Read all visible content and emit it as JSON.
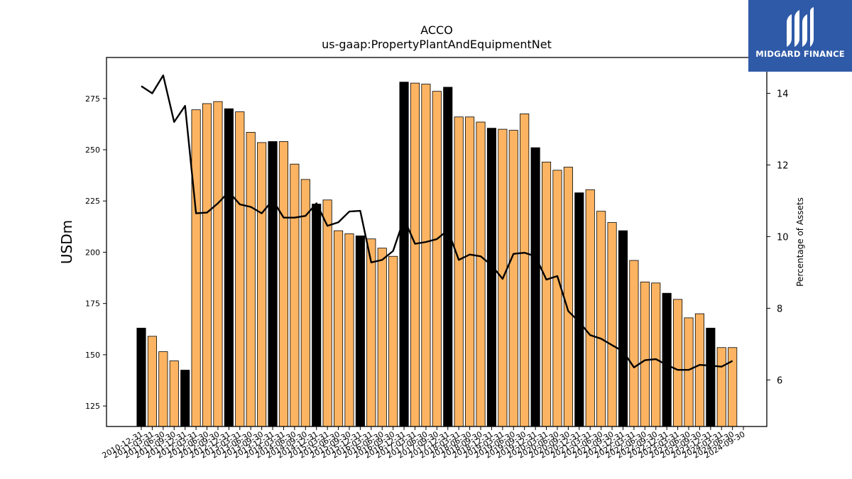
{
  "chart_data": {
    "type": "bar+line",
    "title": "ACCO",
    "subtitle": "us-gaap:PropertyPlantAndEquipmentNet",
    "ylabel": "USDm",
    "y2label": "Percentage of Assets",
    "ylim": [
      115,
      295
    ],
    "y2lim": [
      4.7,
      15.0
    ],
    "yticks": [
      125,
      150,
      175,
      200,
      225,
      250,
      275
    ],
    "y2ticks": [
      6,
      8,
      10,
      12,
      14
    ],
    "categories": [
      "2010-12-31",
      "2011-03-31",
      "2011-06-30",
      "2011-09-30",
      "2011-12-31",
      "2012-03-31",
      "2012-06-30",
      "2012-09-30",
      "2012-12-31",
      "2013-03-31",
      "2013-06-30",
      "2013-09-30",
      "2013-12-31",
      "2014-03-31",
      "2014-06-30",
      "2014-09-30",
      "2014-12-31",
      "2015-03-31",
      "2015-06-30",
      "2015-09-30",
      "2015-12-31",
      "2016-03-31",
      "2016-06-30",
      "2016-09-30",
      "2016-12-31",
      "2017-03-31",
      "2017-06-30",
      "2017-09-30",
      "2017-12-31",
      "2018-03-31",
      "2018-06-30",
      "2018-09-30",
      "2018-12-31",
      "2019-03-31",
      "2019-06-30",
      "2019-09-30",
      "2019-12-31",
      "2020-03-31",
      "2020-06-30",
      "2020-09-30",
      "2020-12-31",
      "2021-03-31",
      "2021-06-30",
      "2021-09-30",
      "2021-12-31",
      "2022-03-31",
      "2022-06-30",
      "2022-09-30",
      "2022-12-31",
      "2023-03-31",
      "2023-06-30",
      "2023-09-30",
      "2023-12-31",
      "2024-03-31",
      "2024-06-30",
      "2024-09-30"
    ],
    "series": [
      {
        "name": "",
        "type": "bar",
        "values": [
          163.0,
          159.0,
          151.5,
          147.0,
          142.5,
          269.5,
          272.5,
          273.5,
          270.0,
          268.5,
          258.5,
          253.5,
          254.0,
          254.0,
          243.0,
          235.5,
          223.5,
          225.5,
          210.5,
          209.0,
          208.0,
          206.5,
          202.0,
          198.0,
          283.0,
          282.5,
          282.0,
          278.5,
          280.5,
          266.0,
          266.0,
          263.5,
          260.5,
          260.0,
          259.5,
          267.5,
          251.0,
          244.0,
          240.0,
          241.5,
          229.0,
          230.5,
          220.0,
          214.5,
          210.5,
          196.0,
          185.5,
          185.0,
          180.0,
          177.0,
          168.0,
          170.0,
          163.0,
          153.5,
          153.5,
          null
        ]
      },
      {
        "name": "",
        "type": "line",
        "values": [
          14.2,
          14.0,
          14.5,
          13.2,
          13.65,
          10.65,
          10.67,
          10.93,
          11.25,
          10.9,
          10.83,
          10.65,
          11.02,
          10.53,
          10.53,
          10.58,
          10.93,
          10.3,
          10.4,
          10.7,
          10.72,
          9.28,
          9.35,
          9.6,
          10.5,
          9.8,
          9.85,
          9.93,
          10.18,
          9.35,
          9.5,
          9.45,
          9.2,
          8.82,
          9.52,
          9.55,
          9.45,
          8.8,
          8.9,
          7.92,
          7.62,
          7.25,
          7.15,
          6.97,
          6.8,
          6.35,
          6.55,
          6.58,
          6.42,
          6.28,
          6.28,
          6.42,
          6.4,
          6.37,
          6.53,
          null
        ]
      }
    ],
    "bar_highlight_every": 4,
    "colors": {
      "bar": "#fdb462",
      "bar_highlight": "#000000",
      "line": "#000000"
    },
    "grid": false
  },
  "logo": {
    "text": "MIDGARD FINANCE",
    "color": "#2f5aa8"
  }
}
